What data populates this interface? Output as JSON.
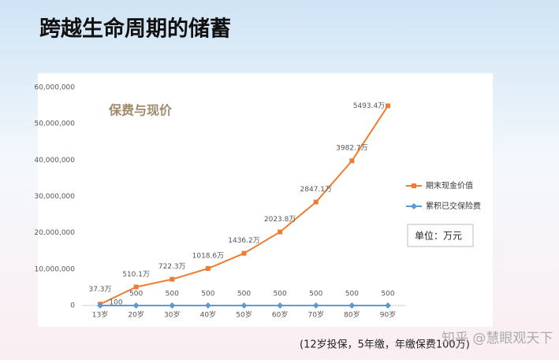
{
  "title": "跨越生命周期的储蓄",
  "chart_data": {
    "type": "line",
    "title": "保费与现价",
    "categories": [
      "13岁",
      "20岁",
      "30岁",
      "40岁",
      "50岁",
      "60岁",
      "70岁",
      "80岁",
      "90岁"
    ],
    "series": [
      {
        "name": "期末现金价值",
        "color": "#ed7d31",
        "values": [
          373000,
          5101000,
          7223000,
          10186000,
          14362000,
          20238000,
          28471000,
          39827000,
          54934000
        ],
        "value_labels": [
          "37.3万",
          "510.1万",
          "722.3万",
          "1018.6万",
          "1436.2万",
          "2023.8万",
          "2847.1万",
          "3982.7万",
          "5493.4万"
        ]
      },
      {
        "name": "累积已交保险费",
        "color": "#5b9bd5",
        "values": [
          100,
          500,
          500,
          500,
          500,
          500,
          500,
          500,
          500
        ]
      }
    ],
    "ylim": [
      0,
      60000000
    ],
    "yticks": [
      0,
      {
        "value": 10000000,
        "label": "10,000,000"
      },
      {
        "value": 20000000,
        "label": "20,000,000"
      },
      {
        "value": 30000000,
        "label": "30,000,000"
      },
      {
        "value": 40000000,
        "label": "40,000,000"
      },
      {
        "value": 50000000,
        "label": "50,000,000"
      },
      {
        "value": 60000000,
        "label": "60,000,000"
      }
    ],
    "legend": "right",
    "unit_note": "单位：万元"
  },
  "footnote": "(12岁投保，5年缴，年缴保费100万)",
  "watermark": "知乎 @慧眼观天下"
}
